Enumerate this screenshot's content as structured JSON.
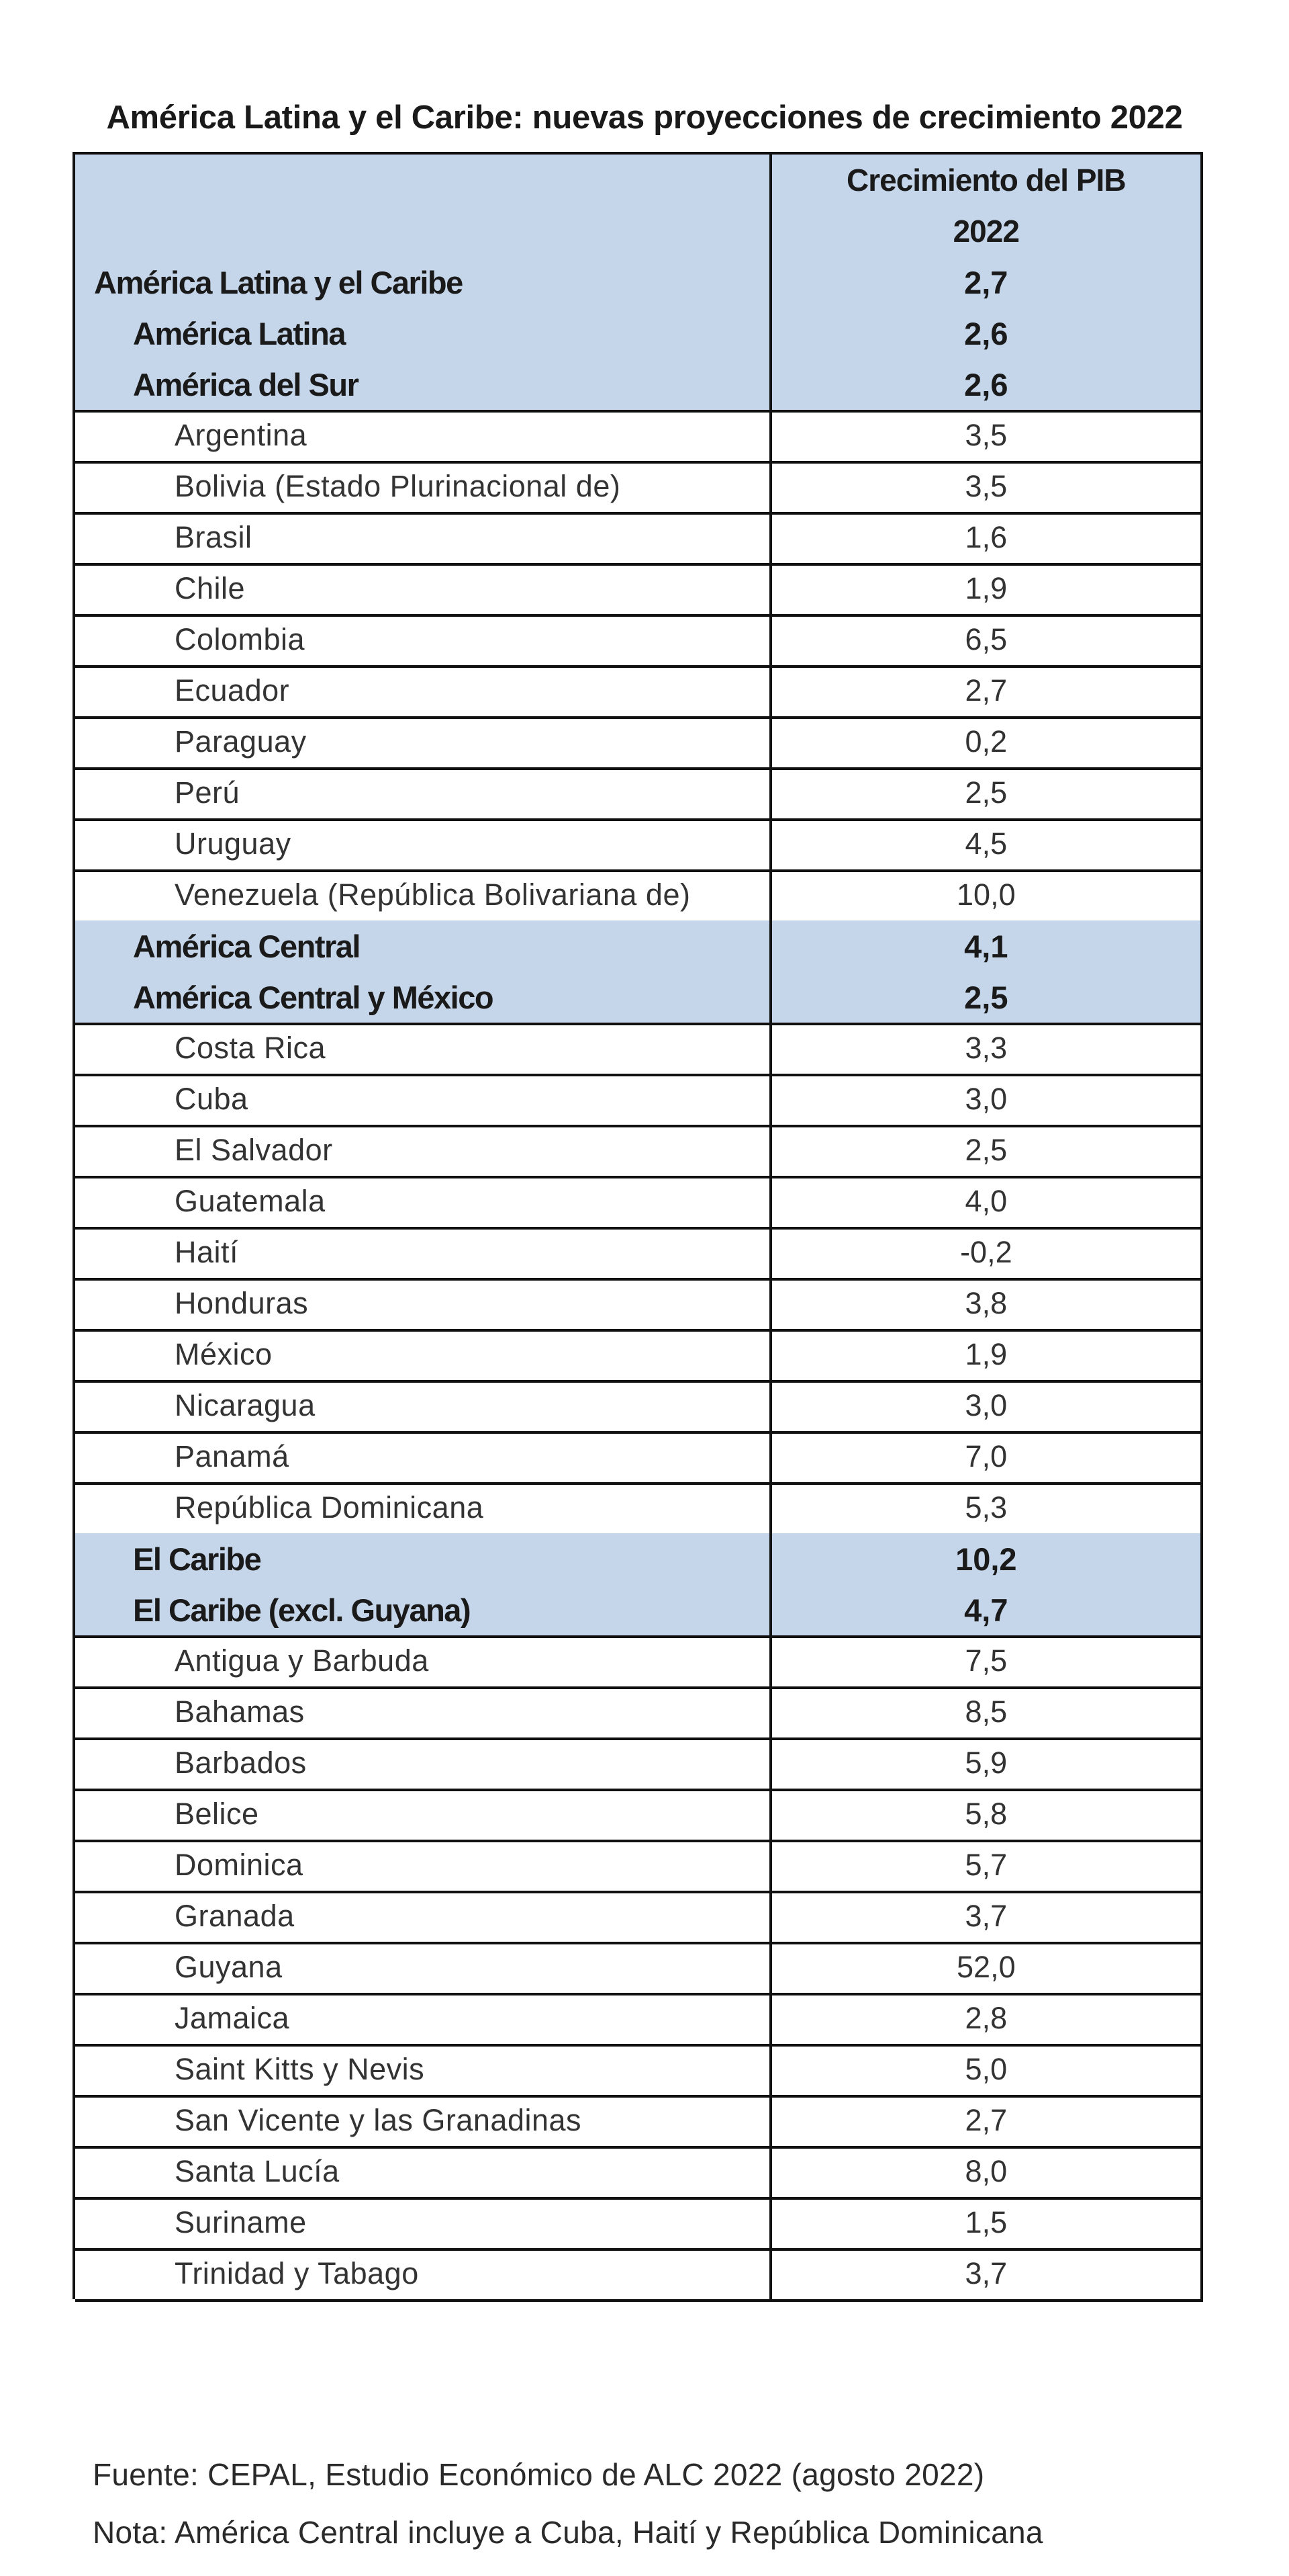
{
  "title": "América Latina y el Caribe: nuevas proyecciones de crecimiento 2022",
  "table": {
    "header": {
      "metric": "Crecimiento del PIB",
      "year": "2022"
    },
    "rows": [
      {
        "label": "América Latina y el Caribe",
        "value": "2,7",
        "level": 0,
        "shaded": true
      },
      {
        "label": "América Latina",
        "value": "2,6",
        "level": 1,
        "shaded": true
      },
      {
        "label": "América del Sur",
        "value": "2,6",
        "level": 1,
        "shaded": true
      },
      {
        "label": "Argentina",
        "value": "3,5",
        "level": 2,
        "shaded": false
      },
      {
        "label": "Bolivia (Estado Plurinacional de)",
        "value": "3,5",
        "level": 2,
        "shaded": false
      },
      {
        "label": "Brasil",
        "value": "1,6",
        "level": 2,
        "shaded": false
      },
      {
        "label": "Chile",
        "value": "1,9",
        "level": 2,
        "shaded": false
      },
      {
        "label": "Colombia",
        "value": "6,5",
        "level": 2,
        "shaded": false
      },
      {
        "label": "Ecuador",
        "value": "2,7",
        "level": 2,
        "shaded": false
      },
      {
        "label": "Paraguay",
        "value": "0,2",
        "level": 2,
        "shaded": false
      },
      {
        "label": "Perú",
        "value": "2,5",
        "level": 2,
        "shaded": false
      },
      {
        "label": "Uruguay",
        "value": "4,5",
        "level": 2,
        "shaded": false
      },
      {
        "label": "Venezuela (República Bolivariana de)",
        "value": "10,0",
        "level": 2,
        "shaded": false
      },
      {
        "label": "América Central",
        "value": "4,1",
        "level": 1,
        "shaded": true
      },
      {
        "label": "América Central y México",
        "value": "2,5",
        "level": 1,
        "shaded": true
      },
      {
        "label": "Costa Rica",
        "value": "3,3",
        "level": 2,
        "shaded": false
      },
      {
        "label": "Cuba",
        "value": "3,0",
        "level": 2,
        "shaded": false
      },
      {
        "label": "El Salvador",
        "value": "2,5",
        "level": 2,
        "shaded": false
      },
      {
        "label": "Guatemala",
        "value": "4,0",
        "level": 2,
        "shaded": false
      },
      {
        "label": "Haití",
        "value": "-0,2",
        "level": 2,
        "shaded": false
      },
      {
        "label": "Honduras",
        "value": "3,8",
        "level": 2,
        "shaded": false
      },
      {
        "label": "México",
        "value": "1,9",
        "level": 2,
        "shaded": false
      },
      {
        "label": "Nicaragua",
        "value": "3,0",
        "level": 2,
        "shaded": false
      },
      {
        "label": "Panamá",
        "value": "7,0",
        "level": 2,
        "shaded": false
      },
      {
        "label": "República Dominicana",
        "value": "5,3",
        "level": 2,
        "shaded": false
      },
      {
        "label": "El Caribe",
        "value": "10,2",
        "level": 1,
        "shaded": true
      },
      {
        "label": "El Caribe (excl. Guyana)",
        "value": "4,7",
        "level": 1,
        "shaded": true
      },
      {
        "label": "Antigua y Barbuda",
        "value": "7,5",
        "level": 2,
        "shaded": false
      },
      {
        "label": "Bahamas",
        "value": "8,5",
        "level": 2,
        "shaded": false
      },
      {
        "label": "Barbados",
        "value": "5,9",
        "level": 2,
        "shaded": false
      },
      {
        "label": "Belice",
        "value": "5,8",
        "level": 2,
        "shaded": false
      },
      {
        "label": "Dominica",
        "value": "5,7",
        "level": 2,
        "shaded": false
      },
      {
        "label": "Granada",
        "value": "3,7",
        "level": 2,
        "shaded": false
      },
      {
        "label": "Guyana",
        "value": "52,0",
        "level": 2,
        "shaded": false
      },
      {
        "label": "Jamaica",
        "value": "2,8",
        "level": 2,
        "shaded": false
      },
      {
        "label": "Saint Kitts y Nevis",
        "value": "5,0",
        "level": 2,
        "shaded": false
      },
      {
        "label": "San Vicente y las Granadinas",
        "value": "2,7",
        "level": 2,
        "shaded": false
      },
      {
        "label": "Santa Lucía",
        "value": "8,0",
        "level": 2,
        "shaded": false
      },
      {
        "label": "Suriname",
        "value": "1,5",
        "level": 2,
        "shaded": false
      },
      {
        "label": "Trinidad y Tabago",
        "value": "3,7",
        "level": 2,
        "shaded": false
      }
    ]
  },
  "notes": {
    "source": "Fuente: CEPAL, Estudio Económico de ALC 2022 (agosto 2022)",
    "note": "Nota: América Central incluye a Cuba, Haití y República Dominicana"
  }
}
